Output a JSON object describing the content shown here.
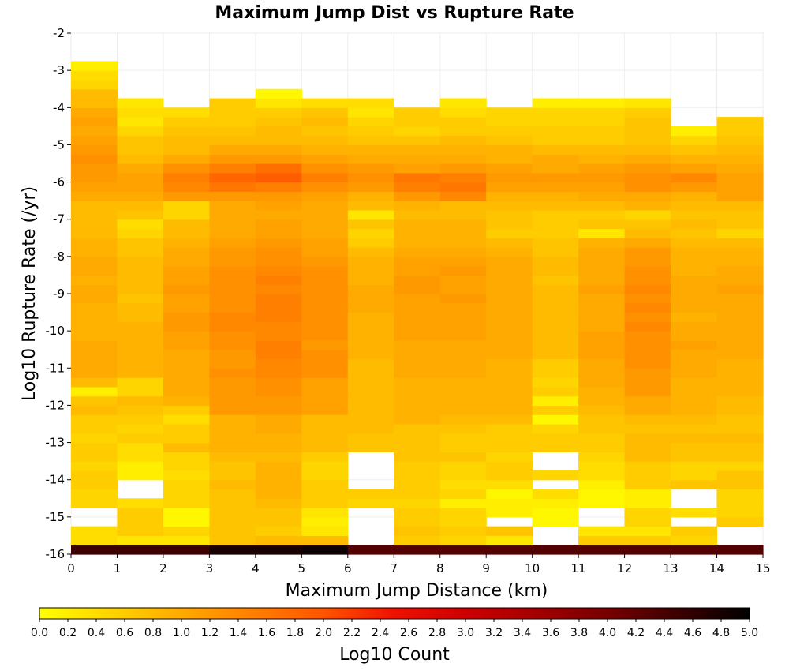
{
  "chart_data": {
    "type": "heatmap",
    "title": "Maximum Jump Dist vs Rupture Rate",
    "xlabel": "Maximum Jump Distance (km)",
    "ylabel": "Log10 Rupture Rate (/yr)",
    "xlim": [
      0,
      15
    ],
    "ylim": [
      -16,
      -2
    ],
    "x_ticks": [
      "0",
      "1",
      "2",
      "3",
      "4",
      "5",
      "6",
      "7",
      "8",
      "9",
      "10",
      "11",
      "12",
      "13",
      "14",
      "15"
    ],
    "y_ticks": [
      "-2",
      "-3",
      "-4",
      "-5",
      "-6",
      "-7",
      "-8",
      "-9",
      "-10",
      "-11",
      "-12",
      "-13",
      "-14",
      "-15",
      "-16"
    ],
    "x_bins": [
      0,
      1,
      2,
      3,
      4,
      5,
      6,
      7,
      8,
      9,
      10,
      11,
      12,
      13,
      14
    ],
    "x_bin_width": 1,
    "y_bin_starts": [
      -16.0,
      -15.75,
      -15.5,
      -15.25,
      -15.0,
      -14.75,
      -14.5,
      -14.25,
      -14.0,
      -13.75,
      -13.5,
      -13.25,
      -13.0,
      -12.75,
      -12.5,
      -12.25,
      -12.0,
      -11.75,
      -11.5,
      -11.25,
      -11.0,
      -10.75,
      -10.5,
      -10.25,
      -10.0,
      -9.75,
      -9.5,
      -9.25,
      -9.0,
      -8.75,
      -8.5,
      -8.25,
      -8.0,
      -7.75,
      -7.5,
      -7.25,
      -7.0,
      -6.75,
      -6.5,
      -6.25,
      -6.0,
      -5.75,
      -5.5,
      -5.25,
      -5.0,
      -4.75,
      -4.5,
      -4.25,
      -4.0,
      -3.75,
      -3.5,
      -3.25,
      -3.0
    ],
    "y_bin_height": 0.25,
    "z_label": "Log10 Count",
    "z_range": [
      0,
      5
    ],
    "colorbar_ticks": [
      "0.0",
      "0.2",
      "0.4",
      "0.6",
      "0.8",
      "1.0",
      "1.2",
      "1.4",
      "1.6",
      "1.8",
      "2.0",
      "2.2",
      "2.4",
      "2.6",
      "2.8",
      "3.0",
      "3.2",
      "3.4",
      "3.6",
      "3.8",
      "4.0",
      "4.2",
      "4.4",
      "4.6",
      "4.8",
      "5.0"
    ],
    "colorscale": [
      "#ffff00",
      "#ff9900",
      "#ff2200",
      "#cc0000",
      "#880000",
      "#000000"
    ],
    "grid": true,
    "colorbar_position": "bottom",
    "z": [
      [
        4.5,
        4.5,
        4.5,
        4.8,
        4.8,
        4.9,
        4.3,
        4.3,
        4.3,
        4.3,
        4.3,
        4.3,
        4.3,
        4.3,
        4.3
      ],
      [
        0.4,
        0.3,
        0.3,
        0.7,
        0.8,
        0.8,
        null,
        0.6,
        0.5,
        0.3,
        null,
        0.6,
        0.6,
        0.5,
        null
      ],
      [
        0.4,
        0.6,
        0.5,
        0.7,
        0.6,
        0.3,
        null,
        0.7,
        0.6,
        0.7,
        null,
        0.3,
        0.3,
        0.6,
        null
      ],
      [
        null,
        0.6,
        0.1,
        0.7,
        0.7,
        0.2,
        null,
        0.6,
        0.5,
        null,
        0.1,
        null,
        0.5,
        null,
        0.6
      ],
      [
        null,
        0.6,
        0.1,
        0.7,
        0.7,
        0.3,
        null,
        0.6,
        0.5,
        0.2,
        0.1,
        null,
        0.5,
        0.4,
        0.5
      ],
      [
        0.5,
        0.4,
        0.5,
        0.7,
        0.8,
        0.6,
        0.5,
        0.5,
        0.2,
        0.2,
        0.2,
        0.1,
        0.2,
        null,
        0.5
      ],
      [
        0.5,
        null,
        0.5,
        0.7,
        0.9,
        0.6,
        0.6,
        0.6,
        0.5,
        0.1,
        0.4,
        0.1,
        0.2,
        null,
        0.5
      ],
      [
        0.6,
        null,
        0.5,
        0.8,
        0.9,
        0.6,
        null,
        0.6,
        0.4,
        0.4,
        null,
        0.2,
        0.6,
        0.7,
        0.7
      ],
      [
        0.6,
        0.2,
        0.4,
        0.7,
        0.9,
        0.5,
        null,
        0.6,
        0.5,
        0.6,
        0.5,
        0.4,
        0.6,
        0.5,
        0.7
      ],
      [
        0.5,
        0.2,
        0.5,
        0.7,
        0.9,
        0.5,
        null,
        0.6,
        0.5,
        0.6,
        null,
        0.4,
        0.6,
        0.5,
        0.5
      ],
      [
        0.6,
        0.4,
        0.5,
        0.8,
        0.8,
        0.6,
        null,
        0.7,
        0.7,
        0.5,
        null,
        0.5,
        0.8,
        0.7,
        0.7
      ],
      [
        0.6,
        0.4,
        0.8,
        0.9,
        0.9,
        0.8,
        0.7,
        0.7,
        0.6,
        0.6,
        0.6,
        0.6,
        0.8,
        0.7,
        0.7
      ],
      [
        0.5,
        0.6,
        0.6,
        0.9,
        0.9,
        0.8,
        0.7,
        0.7,
        0.6,
        0.6,
        0.6,
        0.6,
        0.8,
        0.8,
        0.8
      ],
      [
        0.6,
        0.5,
        0.6,
        0.9,
        1.0,
        0.8,
        0.8,
        0.7,
        0.7,
        0.6,
        0.5,
        0.7,
        0.7,
        0.7,
        0.7
      ],
      [
        0.6,
        0.6,
        0.4,
        0.9,
        1.0,
        0.8,
        0.8,
        0.9,
        0.8,
        0.8,
        0.1,
        0.7,
        0.8,
        0.8,
        0.7
      ],
      [
        0.8,
        0.7,
        0.6,
        1.2,
        1.2,
        1.1,
        0.8,
        0.9,
        0.9,
        0.9,
        0.6,
        0.8,
        1.0,
        0.9,
        0.8
      ],
      [
        0.7,
        0.8,
        0.9,
        1.2,
        1.2,
        1.1,
        0.8,
        0.9,
        0.9,
        0.9,
        0.2,
        0.9,
        1.0,
        0.9,
        0.8
      ],
      [
        0.2,
        0.5,
        1.0,
        1.2,
        1.3,
        1.1,
        0.8,
        0.9,
        0.9,
        0.9,
        0.6,
        0.9,
        1.2,
        0.9,
        0.9
      ],
      [
        0.8,
        0.5,
        1.0,
        1.2,
        1.3,
        1.1,
        0.8,
        0.9,
        0.9,
        0.9,
        0.5,
        1.0,
        1.2,
        0.9,
        0.9
      ],
      [
        1.0,
        0.9,
        1.0,
        1.3,
        1.4,
        1.3,
        0.8,
        1.0,
        1.0,
        0.9,
        0.6,
        1.0,
        1.2,
        1.0,
        0.9
      ],
      [
        1.0,
        0.9,
        1.0,
        1.2,
        1.4,
        1.3,
        0.8,
        1.0,
        1.0,
        0.9,
        0.6,
        1.0,
        1.3,
        1.0,
        0.9
      ],
      [
        1.0,
        0.9,
        1.0,
        1.2,
        1.5,
        1.3,
        0.9,
        1.0,
        1.0,
        1.0,
        0.8,
        1.1,
        1.3,
        1.0,
        1.0
      ],
      [
        1.0,
        0.9,
        1.1,
        1.3,
        1.5,
        1.2,
        0.9,
        1.0,
        1.0,
        1.0,
        0.8,
        1.1,
        1.3,
        1.1,
        1.0
      ],
      [
        0.9,
        0.9,
        1.1,
        1.3,
        1.4,
        1.3,
        0.9,
        1.1,
        1.1,
        1.0,
        0.8,
        1.1,
        1.3,
        1.0,
        1.0
      ],
      [
        0.9,
        0.9,
        1.2,
        1.4,
        1.4,
        1.3,
        0.9,
        1.1,
        1.1,
        1.0,
        0.8,
        1.0,
        1.4,
        1.0,
        1.0
      ],
      [
        0.9,
        0.8,
        1.2,
        1.4,
        1.5,
        1.3,
        0.9,
        1.1,
        1.1,
        1.0,
        0.8,
        1.0,
        1.3,
        0.9,
        1.0
      ],
      [
        0.9,
        0.8,
        1.1,
        1.3,
        1.5,
        1.3,
        1.0,
        1.1,
        1.1,
        1.0,
        0.8,
        1.0,
        1.4,
        1.0,
        1.0
      ],
      [
        1.0,
        0.7,
        1.1,
        1.3,
        1.5,
        1.3,
        1.0,
        1.1,
        1.2,
        1.0,
        0.8,
        1.0,
        1.3,
        1.0,
        1.0
      ],
      [
        1.0,
        0.8,
        1.2,
        1.3,
        1.4,
        1.3,
        1.0,
        1.2,
        1.1,
        1.0,
        0.8,
        1.1,
        1.4,
        1.0,
        1.1
      ],
      [
        0.9,
        0.8,
        1.1,
        1.3,
        1.5,
        1.3,
        0.9,
        1.2,
        1.1,
        1.0,
        0.7,
        1.0,
        1.3,
        1.0,
        1.0
      ],
      [
        1.0,
        0.8,
        1.1,
        1.3,
        1.4,
        1.3,
        0.9,
        1.1,
        1.2,
        1.0,
        0.8,
        1.0,
        1.3,
        0.9,
        1.0
      ],
      [
        1.0,
        0.8,
        1.0,
        1.2,
        1.3,
        1.2,
        0.9,
        1.1,
        1.1,
        1.0,
        0.8,
        1.0,
        1.2,
        0.9,
        0.9
      ],
      [
        0.9,
        0.7,
        1.0,
        1.2,
        1.3,
        1.1,
        0.8,
        1.0,
        1.0,
        0.9,
        0.7,
        1.0,
        1.2,
        0.9,
        0.9
      ],
      [
        0.9,
        0.7,
        0.9,
        1.1,
        1.2,
        1.1,
        0.6,
        0.9,
        0.9,
        0.8,
        0.7,
        0.9,
        1.0,
        0.8,
        0.8
      ],
      [
        0.8,
        0.5,
        0.8,
        1.0,
        1.1,
        1.0,
        0.5,
        0.9,
        0.9,
        0.6,
        0.6,
        0.3,
        0.8,
        0.7,
        0.5
      ],
      [
        0.8,
        0.4,
        0.8,
        1.0,
        1.1,
        1.0,
        0.7,
        0.9,
        0.9,
        0.7,
        0.6,
        0.7,
        0.7,
        0.8,
        0.7
      ],
      [
        0.8,
        0.7,
        0.5,
        1.0,
        1.0,
        1.0,
        0.3,
        0.8,
        0.8,
        0.7,
        0.6,
        0.6,
        0.5,
        0.7,
        0.7
      ],
      [
        0.8,
        0.8,
        0.5,
        1.0,
        1.1,
        1.0,
        0.8,
        0.9,
        0.8,
        0.8,
        0.8,
        0.8,
        0.9,
        0.8,
        0.8
      ],
      [
        1.0,
        1.0,
        1.2,
        1.2,
        1.2,
        1.1,
        0.9,
        1.2,
        1.4,
        0.9,
        0.9,
        1.0,
        1.0,
        0.9,
        1.1
      ],
      [
        1.1,
        1.1,
        1.4,
        1.6,
        1.5,
        1.3,
        1.2,
        1.5,
        1.6,
        1.1,
        1.1,
        1.1,
        1.3,
        1.2,
        1.1
      ],
      [
        1.2,
        1.1,
        1.5,
        1.8,
        1.9,
        1.5,
        1.3,
        1.6,
        1.5,
        1.2,
        1.2,
        1.2,
        1.3,
        1.4,
        1.1
      ],
      [
        1.2,
        1.0,
        1.3,
        1.5,
        1.7,
        1.3,
        1.2,
        1.1,
        1.2,
        1.1,
        1.0,
        1.1,
        1.2,
        1.1,
        1.0
      ],
      [
        1.3,
        0.8,
        1.0,
        1.2,
        1.2,
        1.1,
        1.0,
        1.0,
        1.0,
        0.9,
        1.0,
        0.9,
        1.0,
        0.9,
        0.9
      ],
      [
        1.2,
        0.7,
        0.8,
        1.0,
        1.0,
        0.9,
        0.9,
        0.9,
        0.9,
        0.9,
        0.8,
        0.8,
        0.8,
        0.7,
        0.8
      ],
      [
        1.1,
        0.7,
        0.8,
        0.8,
        0.8,
        0.8,
        0.7,
        0.7,
        0.8,
        0.7,
        0.6,
        0.6,
        0.7,
        0.5,
        0.7
      ],
      [
        1.0,
        0.5,
        0.7,
        0.7,
        0.8,
        0.7,
        0.6,
        0.5,
        0.6,
        0.6,
        0.6,
        0.6,
        0.7,
        0.2,
        0.6
      ],
      [
        1.1,
        0.3,
        0.6,
        0.6,
        0.7,
        0.8,
        0.5,
        0.6,
        0.6,
        0.5,
        0.5,
        0.5,
        0.7,
        null,
        0.6
      ],
      [
        1.0,
        0.4,
        0.4,
        0.6,
        0.6,
        0.7,
        0.3,
        0.6,
        0.4,
        0.5,
        0.5,
        0.5,
        0.6,
        null,
        null
      ],
      [
        0.8,
        0.3,
        null,
        0.6,
        0.3,
        0.4,
        0.4,
        null,
        0.3,
        null,
        0.2,
        0.2,
        0.3,
        null,
        null
      ],
      [
        0.8,
        null,
        null,
        null,
        0.1,
        null,
        null,
        null,
        null,
        null,
        null,
        null,
        null,
        null,
        null
      ],
      [
        0.5,
        null,
        null,
        null,
        null,
        null,
        null,
        null,
        null,
        null,
        null,
        null,
        null,
        null,
        null
      ],
      [
        0.4,
        null,
        null,
        null,
        null,
        null,
        null,
        null,
        null,
        null,
        null,
        null,
        null,
        null,
        null
      ],
      [
        0.2,
        null,
        null,
        null,
        null,
        null,
        null,
        null,
        null,
        null,
        null,
        null,
        null,
        null,
        null
      ]
    ]
  }
}
